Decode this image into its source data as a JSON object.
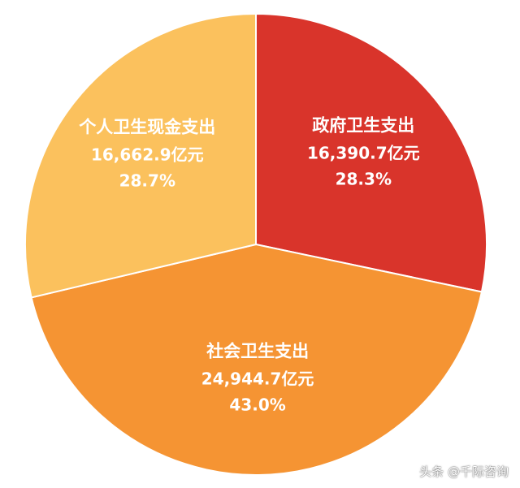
{
  "chart_data": {
    "type": "pie",
    "title": "",
    "start_angle_deg": 0,
    "direction": "clockwise",
    "slices": [
      {
        "name": "政府卫生支出",
        "value": 16390.7,
        "value_label": "16,390.7亿元",
        "percent": 28.3,
        "percent_label": "28.3%",
        "color": "#d9342b"
      },
      {
        "name": "社会卫生支出",
        "value": 24944.7,
        "value_label": "24,944.7亿元",
        "percent": 43.0,
        "percent_label": "43.0%",
        "color": "#f59433"
      },
      {
        "name": "个人卫生现金支出",
        "value": 16662.9,
        "value_label": "16,662.9亿元",
        "percent": 28.7,
        "percent_label": "28.7%",
        "color": "#fbc15d"
      }
    ]
  },
  "watermark": {
    "text": "头条 @千际咨询"
  }
}
